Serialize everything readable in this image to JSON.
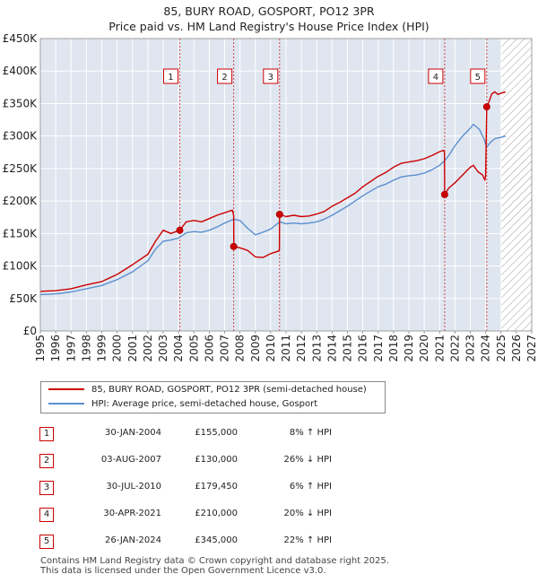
{
  "header": {
    "title_line1": "85, BURY ROAD, GOSPORT, PO12 3PR",
    "title_line2": "Price paid vs. HM Land Registry's House Price Index (HPI)"
  },
  "colors": {
    "property": "#cc0000",
    "hpi": "#5b8fcf",
    "background": "#dfe6f0",
    "forecast_hatch": "#999999"
  },
  "chart_data": {
    "type": "line",
    "title": "85, BURY ROAD, GOSPORT, PO12 3PR — Price paid vs. HM Land Registry's House Price Index (HPI)",
    "xlabel": "",
    "ylabel": "",
    "xlim": [
      1995,
      2027
    ],
    "ylim": [
      0,
      450000
    ],
    "x_ticks": [
      "1995",
      "1996",
      "1997",
      "1998",
      "1999",
      "2000",
      "2001",
      "2002",
      "2003",
      "2004",
      "2005",
      "2006",
      "2007",
      "2008",
      "2009",
      "2010",
      "2011",
      "2012",
      "2013",
      "2014",
      "2015",
      "2016",
      "2017",
      "2018",
      "2019",
      "2020",
      "2021",
      "2022",
      "2023",
      "2024",
      "2025",
      "2026",
      "2027"
    ],
    "y_ticks": [
      {
        "value": 0,
        "label": "£0"
      },
      {
        "value": 50000,
        "label": "£50K"
      },
      {
        "value": 100000,
        "label": "£100K"
      },
      {
        "value": 150000,
        "label": "£150K"
      },
      {
        "value": 200000,
        "label": "£200K"
      },
      {
        "value": 250000,
        "label": "£250K"
      },
      {
        "value": 300000,
        "label": "£300K"
      },
      {
        "value": 350000,
        "label": "£350K"
      },
      {
        "value": 400000,
        "label": "£400K"
      },
      {
        "value": 450000,
        "label": "£450K"
      }
    ],
    "forecast_start": 2025.0,
    "series": [
      {
        "name": "85, BURY ROAD, GOSPORT, PO12 3PR (semi-detached house)",
        "color": "#cc0000",
        "points": [
          [
            1995.0,
            61000
          ],
          [
            1996.0,
            62000
          ],
          [
            1997.0,
            65000
          ],
          [
            1998.0,
            71000
          ],
          [
            1999.0,
            76000
          ],
          [
            2000.0,
            87000
          ],
          [
            2001.0,
            102000
          ],
          [
            2002.0,
            118000
          ],
          [
            2002.5,
            138000
          ],
          [
            2003.0,
            155000
          ],
          [
            2003.5,
            150000
          ],
          [
            2004.08,
            155000
          ],
          [
            2004.5,
            168000
          ],
          [
            2005.0,
            170000
          ],
          [
            2005.5,
            168000
          ],
          [
            2006.0,
            173000
          ],
          [
            2006.5,
            178000
          ],
          [
            2007.0,
            182000
          ],
          [
            2007.5,
            186000
          ],
          [
            2007.59,
            178000
          ],
          [
            2007.6,
            130000
          ],
          [
            2008.0,
            128000
          ],
          [
            2008.5,
            124000
          ],
          [
            2009.0,
            114000
          ],
          [
            2009.5,
            113000
          ],
          [
            2010.0,
            119000
          ],
          [
            2010.5,
            123000
          ],
          [
            2010.57,
            125000
          ],
          [
            2010.58,
            179450
          ],
          [
            2011.0,
            176000
          ],
          [
            2011.5,
            178000
          ],
          [
            2012.0,
            176000
          ],
          [
            2012.5,
            177000
          ],
          [
            2013.0,
            180000
          ],
          [
            2013.5,
            184000
          ],
          [
            2014.0,
            192000
          ],
          [
            2014.5,
            198000
          ],
          [
            2015.0,
            205000
          ],
          [
            2015.5,
            212000
          ],
          [
            2016.0,
            222000
          ],
          [
            2016.5,
            230000
          ],
          [
            2017.0,
            238000
          ],
          [
            2017.5,
            244000
          ],
          [
            2018.0,
            252000
          ],
          [
            2018.5,
            258000
          ],
          [
            2019.0,
            260000
          ],
          [
            2019.5,
            262000
          ],
          [
            2020.0,
            265000
          ],
          [
            2020.5,
            270000
          ],
          [
            2021.0,
            276000
          ],
          [
            2021.25,
            278000
          ],
          [
            2021.32,
            275000
          ],
          [
            2021.33,
            210000
          ],
          [
            2021.6,
            220000
          ],
          [
            2022.0,
            228000
          ],
          [
            2022.5,
            240000
          ],
          [
            2023.0,
            252000
          ],
          [
            2023.2,
            255000
          ],
          [
            2023.5,
            245000
          ],
          [
            2023.8,
            240000
          ],
          [
            2023.95,
            232000
          ],
          [
            2024.0,
            240000
          ],
          [
            2024.07,
            345000
          ],
          [
            2024.2,
            352000
          ],
          [
            2024.4,
            365000
          ],
          [
            2024.6,
            368000
          ],
          [
            2024.8,
            364000
          ],
          [
            2025.0,
            366000
          ],
          [
            2025.3,
            368000
          ]
        ]
      },
      {
        "name": "HPI: Average price, semi-detached house, Gosport",
        "color": "#5b8fcf",
        "points": [
          [
            1995.0,
            56000
          ],
          [
            1996.0,
            57000
          ],
          [
            1997.0,
            60000
          ],
          [
            1998.0,
            65000
          ],
          [
            1999.0,
            70000
          ],
          [
            2000.0,
            79000
          ],
          [
            2001.0,
            91000
          ],
          [
            2002.0,
            108000
          ],
          [
            2002.5,
            126000
          ],
          [
            2003.0,
            138000
          ],
          [
            2003.5,
            140000
          ],
          [
            2004.0,
            143000
          ],
          [
            2004.5,
            151000
          ],
          [
            2005.0,
            153000
          ],
          [
            2005.5,
            152000
          ],
          [
            2006.0,
            155000
          ],
          [
            2006.5,
            160000
          ],
          [
            2007.0,
            166000
          ],
          [
            2007.6,
            172000
          ],
          [
            2008.0,
            170000
          ],
          [
            2008.5,
            158000
          ],
          [
            2009.0,
            148000
          ],
          [
            2009.5,
            152000
          ],
          [
            2010.0,
            157000
          ],
          [
            2010.6,
            168000
          ],
          [
            2011.0,
            165000
          ],
          [
            2011.5,
            166000
          ],
          [
            2012.0,
            165000
          ],
          [
            2012.5,
            166000
          ],
          [
            2013.0,
            168000
          ],
          [
            2013.5,
            172000
          ],
          [
            2014.0,
            178000
          ],
          [
            2014.5,
            185000
          ],
          [
            2015.0,
            192000
          ],
          [
            2015.5,
            200000
          ],
          [
            2016.0,
            208000
          ],
          [
            2016.5,
            215000
          ],
          [
            2017.0,
            222000
          ],
          [
            2017.5,
            226000
          ],
          [
            2018.0,
            232000
          ],
          [
            2018.5,
            237000
          ],
          [
            2019.0,
            239000
          ],
          [
            2019.5,
            240000
          ],
          [
            2020.0,
            243000
          ],
          [
            2020.5,
            248000
          ],
          [
            2021.0,
            255000
          ],
          [
            2021.33,
            262000
          ],
          [
            2021.6,
            270000
          ],
          [
            2022.0,
            285000
          ],
          [
            2022.5,
            300000
          ],
          [
            2023.0,
            312000
          ],
          [
            2023.2,
            318000
          ],
          [
            2023.6,
            310000
          ],
          [
            2023.9,
            295000
          ],
          [
            2024.07,
            283000
          ],
          [
            2024.3,
            290000
          ],
          [
            2024.6,
            296000
          ],
          [
            2025.0,
            298000
          ],
          [
            2025.3,
            300000
          ]
        ]
      }
    ],
    "sales": [
      {
        "id": "1",
        "x": 2004.08,
        "price": 155000
      },
      {
        "id": "2",
        "x": 2007.59,
        "price": 130000
      },
      {
        "id": "3",
        "x": 2010.58,
        "price": 179450
      },
      {
        "id": "4",
        "x": 2021.33,
        "price": 210000
      },
      {
        "id": "5",
        "x": 2024.07,
        "price": 345000
      }
    ]
  },
  "legend": {
    "property_label": "85, BURY ROAD, GOSPORT, PO12 3PR (semi-detached house)",
    "hpi_label": "HPI: Average price, semi-detached house, Gosport"
  },
  "sales_table": [
    {
      "num": "1",
      "date": "30-JAN-2004",
      "price": "£155,000",
      "hpi": "8% ↑ HPI"
    },
    {
      "num": "2",
      "date": "03-AUG-2007",
      "price": "£130,000",
      "hpi": "26% ↓ HPI"
    },
    {
      "num": "3",
      "date": "30-JUL-2010",
      "price": "£179,450",
      "hpi": "6% ↑ HPI"
    },
    {
      "num": "4",
      "date": "30-APR-2021",
      "price": "£210,000",
      "hpi": "20% ↓ HPI"
    },
    {
      "num": "5",
      "date": "26-JAN-2024",
      "price": "£345,000",
      "hpi": "22% ↑ HPI"
    }
  ],
  "footer": {
    "line1": "Contains HM Land Registry data © Crown copyright and database right 2025.",
    "line2": "This data is licensed under the Open Government Licence v3.0."
  }
}
